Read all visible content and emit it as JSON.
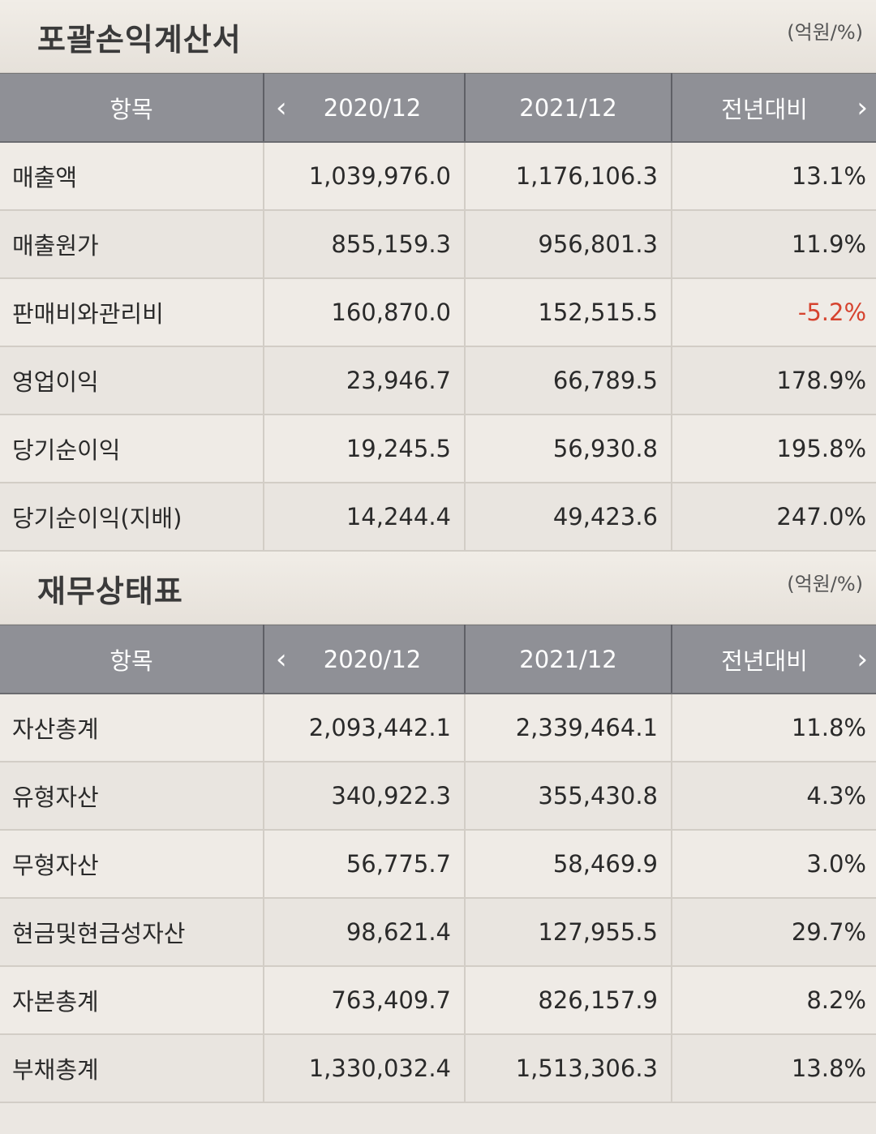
{
  "income": {
    "title": "포괄손익계산서",
    "unit": "(억원/%)",
    "headers": [
      "항목",
      "2020/12",
      "2021/12",
      "전년대비"
    ],
    "rows": [
      {
        "item": "매출액",
        "y2020": "1,039,976.0",
        "y2021": "1,176,106.3",
        "yoy": "13.1%"
      },
      {
        "item": "매출원가",
        "y2020": "855,159.3",
        "y2021": "956,801.3",
        "yoy": "11.9%"
      },
      {
        "item": "판매비와관리비",
        "y2020": "160,870.0",
        "y2021": "152,515.5",
        "yoy": "-5.2%"
      },
      {
        "item": "영업이익",
        "y2020": "23,946.7",
        "y2021": "66,789.5",
        "yoy": "178.9%"
      },
      {
        "item": "당기순이익",
        "y2020": "19,245.5",
        "y2021": "56,930.8",
        "yoy": "195.8%"
      },
      {
        "item": "당기순이익(지배)",
        "y2020": "14,244.4",
        "y2021": "49,423.6",
        "yoy": "247.0%"
      }
    ]
  },
  "balance": {
    "title": "재무상태표",
    "unit": "(억원/%)",
    "headers": [
      "항목",
      "2020/12",
      "2021/12",
      "전년대비"
    ],
    "rows": [
      {
        "item": "자산총계",
        "y2020": "2,093,442.1",
        "y2021": "2,339,464.1",
        "yoy": "11.8%"
      },
      {
        "item": "유형자산",
        "y2020": "340,922.3",
        "y2021": "355,430.8",
        "yoy": "4.3%"
      },
      {
        "item": "무형자산",
        "y2020": "56,775.7",
        "y2021": "58,469.9",
        "yoy": "3.0%"
      },
      {
        "item": "현금및현금성자산",
        "y2020": "98,621.4",
        "y2021": "127,955.5",
        "yoy": "29.7%"
      },
      {
        "item": "자본총계",
        "y2020": "763,409.7",
        "y2021": "826,157.9",
        "yoy": "8.2%"
      },
      {
        "item": "부채총계",
        "y2020": "1,330,032.4",
        "y2021": "1,513,306.3",
        "yoy": "13.8%"
      }
    ]
  },
  "icons": {
    "prev": "chevron-left-icon",
    "next": "chevron-right-icon"
  },
  "colors": {
    "header_bg": "#8f9096",
    "negative": "#d6432f",
    "page_bg": "#ebe7e2"
  }
}
